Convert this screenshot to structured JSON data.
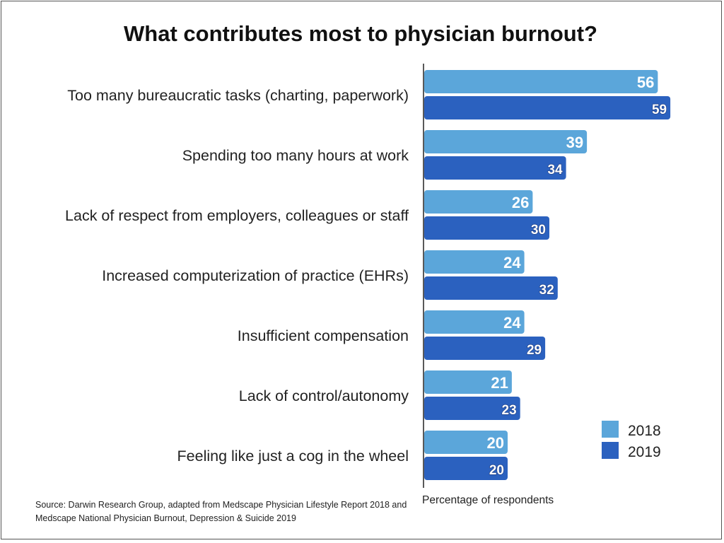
{
  "chart_data": {
    "type": "bar",
    "orientation": "horizontal",
    "title": "What contributes most to physician burnout?",
    "xlabel": "Percentage of respondents",
    "ylabel": "",
    "xlim": [
      0,
      70
    ],
    "grid": false,
    "legend_position": "bottom-right",
    "categories": [
      "Too many bureaucratic tasks (charting, paperwork)",
      "Spending too many hours at work",
      "Lack of respect from employers, colleagues or staff",
      "Increased computerization of practice (EHRs)",
      "Insufficient compensation",
      "Lack of control/autonomy",
      "Feeling like just a cog in the wheel"
    ],
    "series": [
      {
        "name": "2018",
        "color": "#5ba6da",
        "values": [
          56,
          39,
          26,
          24,
          24,
          21,
          20
        ]
      },
      {
        "name": "2019",
        "color": "#2b61bf",
        "values": [
          59,
          34,
          30,
          32,
          29,
          23,
          20
        ]
      }
    ],
    "source": "Source: Darwin Research Group, adapted from Medscape Physician Lifestyle Report 2018 and  Medscape National Physician Burnout, Depression & Suicide 2019"
  }
}
